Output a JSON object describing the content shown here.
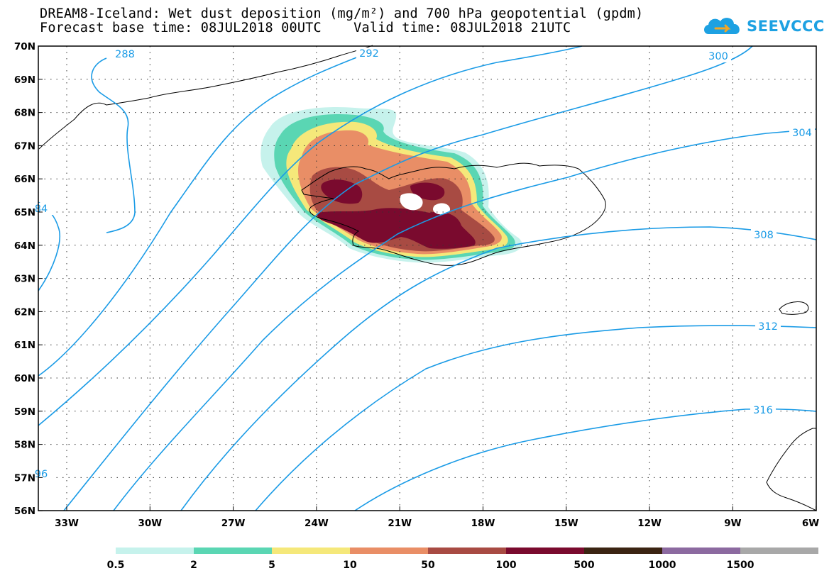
{
  "header": {
    "title_line1": "DREAM8-Iceland: Wet dust deposition (mg/m²) and 700 hPa geopotential (gpdm)",
    "title_line2": "Forecast base time: 08JUL2018 00UTC    Valid time: 08JUL2018 21UTC"
  },
  "logo": {
    "text": "SEEVCCC",
    "icon": "cloud-icon",
    "color": "#1da1e2"
  },
  "map": {
    "lat_labels": [
      "70N",
      "69N",
      "68N",
      "67N",
      "66N",
      "65N",
      "64N",
      "63N",
      "62N",
      "61N",
      "60N",
      "59N",
      "58N",
      "57N",
      "56N"
    ],
    "lon_labels": [
      "33W",
      "30W",
      "27W",
      "24W",
      "21W",
      "18W",
      "15W",
      "12W",
      "9W",
      "6W"
    ],
    "contour_color": "#1a9be6",
    "contour_labels": [
      "288",
      "292",
      "300",
      "304",
      "308",
      "312",
      "316",
      "84",
      "96"
    ]
  },
  "colorbar": {
    "labels": [
      "0.5",
      "2",
      "5",
      "10",
      "50",
      "100",
      "500",
      "1000",
      "1500"
    ],
    "colors": [
      "#c6f2ec",
      "#5ad6b3",
      "#f5e87a",
      "#e98e66",
      "#a84b43",
      "#7a0a2e",
      "#3b2412",
      "#8c6aa0",
      "#a8a8a8"
    ]
  }
}
